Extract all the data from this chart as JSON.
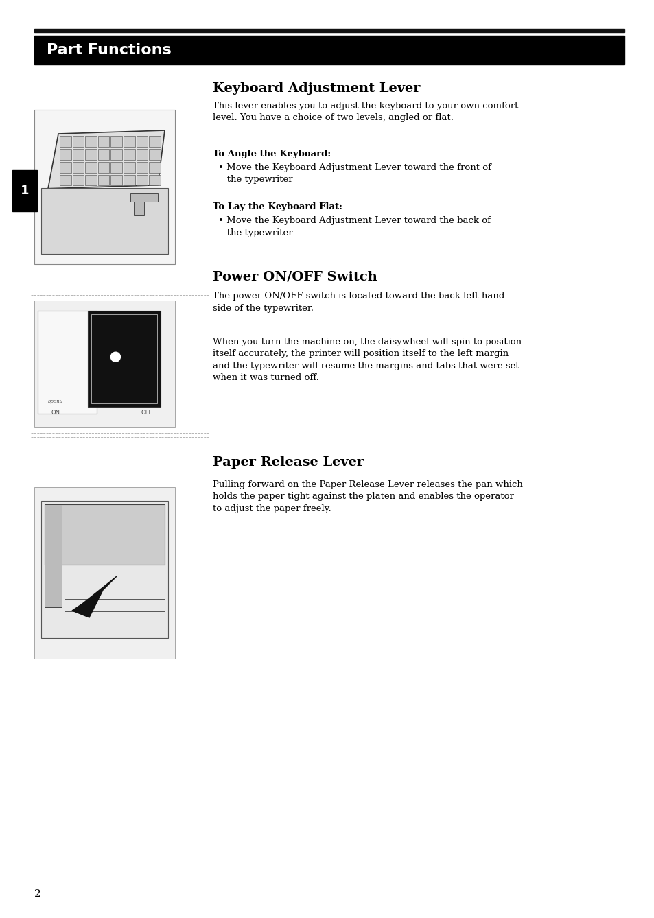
{
  "background_color": "#ffffff",
  "header_bar_color": "#000000",
  "header_text": "Part Functions",
  "header_text_color": "#ffffff",
  "header_font_size": 16,
  "section1_title": "Keyboard Adjustment Lever",
  "section1_body1": "This lever enables you to adjust the keyboard to your own comfort\nlevel. You have a choice of two levels, angled or flat.",
  "section1_sub1_bold": "To Angle the Keyboard:",
  "section1_bullet1": "• Move the Keyboard Adjustment Lever toward the front of\n   the typewriter",
  "section1_sub2_bold": "To Lay the Keyboard Flat:",
  "section1_bullet2": "• Move the Keyboard Adjustment Lever toward the back of\n   the typewriter",
  "section2_title": "Power ON/OFF Switch",
  "section2_body1": "The power ON/OFF switch is located toward the back left-hand\nside of the typewriter.",
  "section2_body2": "When you turn the machine on, the daisywheel will spin to position\nitself accurately, the printer will position itself to the left margin\nand the typewriter will resume the margins and tabs that were set\nwhen it was turned off.",
  "section3_title": "Paper Release Lever",
  "section3_body1": "Pulling forward on the Paper Release Lever releases the pan which\nholds the paper tight against the platen and enables the operator\nto adjust the paper freely.",
  "page_number": "2",
  "side_tab_text": "1",
  "text_color": "#000000",
  "title_font_size": 14,
  "body_font_size": 9.5,
  "bold_font_size": 9.5
}
